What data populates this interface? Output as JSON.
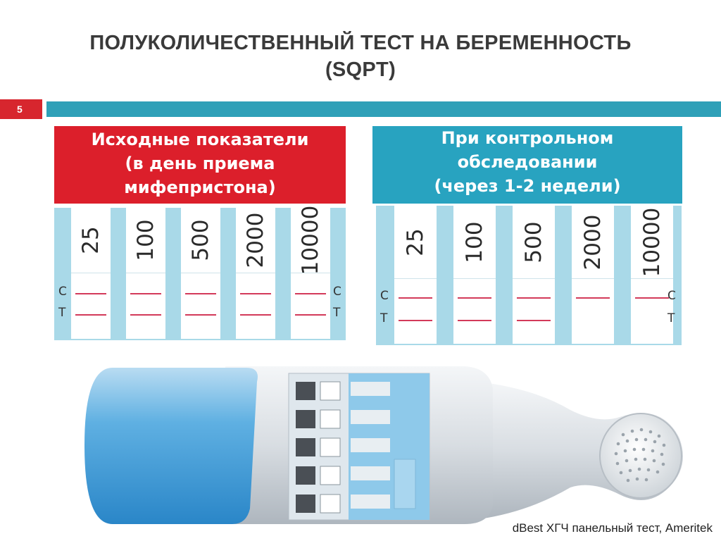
{
  "title": {
    "line1": "ПОЛУКОЛИЧЕСТВЕННЫЙ ТЕСТ НА БЕРЕМЕННОСТЬ",
    "line2": "(SQPT)"
  },
  "slide_number": "5",
  "colors": {
    "red": "#dc1f2b",
    "teal": "#28a3c0",
    "bar": "#2fa0b8",
    "strip_bg": "#a9d9e8",
    "line": "#d33a5a"
  },
  "left_panel": {
    "header_line1": "Исходные показатели",
    "header_line2": "(в день приема",
    "header_line3": "мифепристона)",
    "strips": [
      "25",
      "100",
      "500",
      "2000",
      "10000"
    ],
    "label_c": "C",
    "label_t": "T",
    "control_lines": [
      true,
      true,
      true,
      true,
      true
    ],
    "test_lines": [
      true,
      true,
      true,
      true,
      true
    ]
  },
  "right_panel": {
    "header_line1": "При контрольном",
    "header_line2": "обследовании",
    "header_line3": "(через 1-2 недели)",
    "strips": [
      "25",
      "100",
      "500",
      "2000",
      "10000"
    ],
    "label_c": "C",
    "label_t": "T",
    "control_lines": [
      true,
      true,
      true,
      true,
      true
    ],
    "test_lines": [
      true,
      true,
      true,
      false,
      false
    ]
  },
  "device": {
    "windows": 5,
    "icon": "pregnancy-test-cassette"
  },
  "credit": "dBest ХГЧ панельный тест, Ameritek"
}
